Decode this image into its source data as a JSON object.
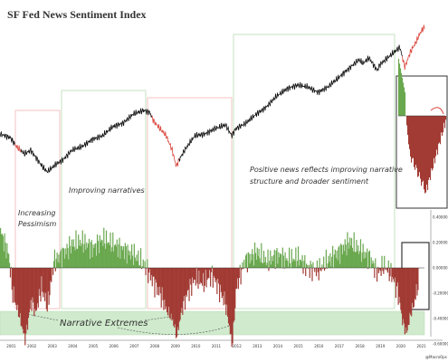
{
  "chart_data": {
    "type": "line",
    "title": "SF Fed News Sentiment Index",
    "annotations": {
      "increasing_pessimism": [
        "Increasing",
        "Pessimism"
      ],
      "improving_narratives": "Improving narratives",
      "positive_news": [
        "Positive news reflects improving narrative",
        "structure and broader sentiment"
      ],
      "narrative_extremes": "Narrative Extremes"
    },
    "watermark": "@MacroOps",
    "x": {
      "ticks": [
        "2001",
        "2002",
        "2003",
        "2004",
        "2005",
        "2006",
        "2007",
        "2008",
        "2009",
        "2010",
        "2011",
        "2012",
        "2013",
        "2014",
        "2015",
        "2016",
        "2017",
        "2018",
        "2019",
        "2020",
        "2021"
      ],
      "range": [
        2000.5,
        2021.2
      ]
    },
    "sentiment_axis": {
      "ticks": [
        "0.40000",
        "0.20000",
        "0.00000",
        "-0.20000",
        "-0.40000",
        "-0.60000"
      ],
      "range": [
        -0.65,
        0.5
      ]
    },
    "price_series": {
      "years": [
        2000.5,
        2001,
        2001.3,
        2001.7,
        2002,
        2002.5,
        2002.8,
        2003.2,
        2003.6,
        2004,
        2004.5,
        2005,
        2005.5,
        2006,
        2006.5,
        2007,
        2007.5,
        2007.8,
        2008,
        2008.3,
        2008.6,
        2008.9,
        2009.1,
        2009.2,
        2009.5,
        2010,
        2010.5,
        2011,
        2011.5,
        2011.8,
        2012,
        2012.5,
        2013,
        2013.5,
        2014,
        2014.5,
        2015,
        2015.5,
        2016,
        2016.5,
        2017,
        2017.5,
        2018,
        2018.2,
        2018.5,
        2018.9,
        2019,
        2019.5,
        2020,
        2020.15,
        2020.25,
        2020.5,
        2020.8,
        2021,
        2021.2
      ],
      "values": [
        29,
        27,
        22,
        18,
        20,
        12,
        8,
        12,
        15,
        20,
        22,
        26,
        28,
        33,
        35,
        40,
        42,
        41,
        36,
        32,
        28,
        20,
        11,
        14,
        20,
        28,
        29,
        32,
        34,
        28,
        32,
        35,
        40,
        44,
        50,
        54,
        56,
        55,
        52,
        55,
        60,
        65,
        70,
        68,
        71,
        64,
        67,
        72,
        77,
        70,
        66,
        74,
        80,
        85,
        88
      ]
    },
    "sentiment_series": {
      "years": [
        2000.5,
        2000.9,
        2001.1,
        2001.4,
        2001.7,
        2002,
        2002.2,
        2002.5,
        2002.8,
        2003.1,
        2003.5,
        2004,
        2004.5,
        2005,
        2005.5,
        2006,
        2006.5,
        2007,
        2007.3,
        2007.6,
        2008,
        2008.3,
        2008.6,
        2008.9,
        2009.1,
        2009.3,
        2009.6,
        2010,
        2010.4,
        2010.8,
        2011.1,
        2011.5,
        2011.8,
        2012,
        2012.4,
        2013,
        2013.5,
        2014,
        2014.5,
        2015,
        2015.5,
        2016,
        2016.5,
        2017,
        2017.5,
        2018,
        2018.5,
        2018.9,
        2019.2,
        2019.6,
        2019.9,
        2020.1,
        2020.3,
        2020.5,
        2020.7,
        2020.9
      ],
      "values": [
        0.28,
        0.1,
        -0.2,
        -0.35,
        -0.55,
        -0.25,
        -0.35,
        -0.15,
        -0.3,
        0.05,
        0.1,
        0.18,
        0.2,
        0.15,
        0.22,
        0.18,
        0.14,
        0.1,
        0.06,
        0.0,
        -0.12,
        -0.2,
        -0.32,
        -0.4,
        -0.52,
        -0.35,
        -0.2,
        -0.08,
        -0.12,
        -0.05,
        -0.14,
        -0.28,
        -0.6,
        -0.15,
        0.05,
        0.12,
        0.05,
        0.1,
        0.06,
        0.08,
        0.0,
        -0.02,
        0.06,
        0.12,
        0.2,
        0.14,
        0.08,
        -0.04,
        0.02,
        -0.06,
        -0.2,
        -0.4,
        -0.5,
        -0.35,
        -0.25,
        -0.1
      ]
    }
  }
}
